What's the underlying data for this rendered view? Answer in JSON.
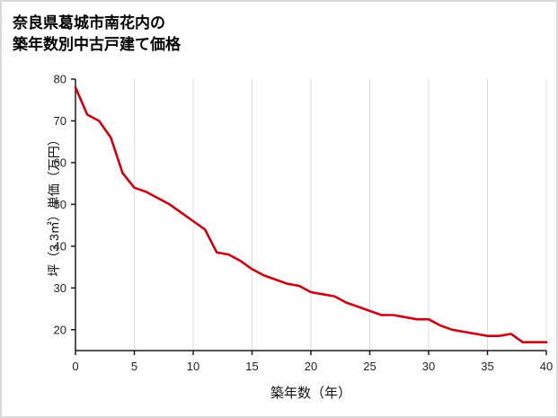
{
  "page": {
    "title_line1": "奈良県葛城市南花内の",
    "title_line2": "築年数別中古戸建て価格"
  },
  "chart_data": {
    "type": "line",
    "title": "奈良県葛城市南花内の築年数別中古戸建て価格",
    "xlabel": "築年数（年）",
    "ylabel": "坪（3.3㎡）単価（万円）",
    "x": [
      0,
      1,
      2,
      3,
      4,
      5,
      6,
      7,
      8,
      9,
      10,
      11,
      12,
      13,
      14,
      15,
      16,
      17,
      18,
      19,
      20,
      21,
      22,
      23,
      24,
      25,
      26,
      27,
      28,
      29,
      30,
      31,
      32,
      33,
      34,
      35,
      36,
      37,
      38,
      39,
      40
    ],
    "y": [
      78,
      71.5,
      70,
      66,
      57.5,
      54,
      53,
      51.5,
      50,
      48,
      46,
      44,
      38.5,
      38,
      36.5,
      34.5,
      33,
      32,
      31,
      30.5,
      29,
      28.5,
      28,
      26.5,
      25.5,
      24.5,
      23.5,
      23.5,
      23,
      22.5,
      22.5,
      21,
      20,
      19.5,
      19,
      18.5,
      18.5,
      19,
      17,
      17,
      17
    ],
    "x_ticks": [
      0,
      5,
      10,
      15,
      20,
      25,
      30,
      35,
      40
    ],
    "y_ticks": [
      20,
      30,
      40,
      50,
      60,
      70,
      80
    ],
    "xlim": [
      0,
      40
    ],
    "ylim": [
      15,
      80
    ],
    "line_color": "#cc0011",
    "grid_color": "#dcdcdc",
    "axis_color": "#1a1a1a",
    "legend": "none",
    "grid": "vertical-only"
  }
}
